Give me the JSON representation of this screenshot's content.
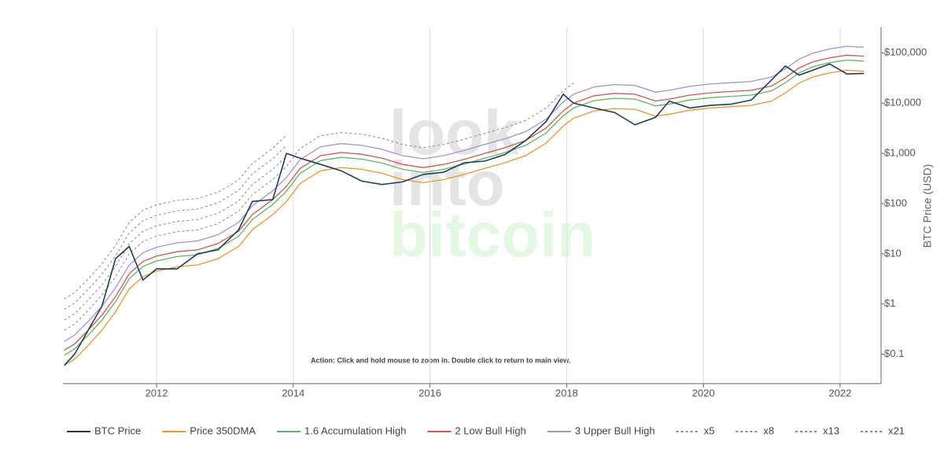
{
  "chart_data": {
    "type": "line",
    "log_y": true,
    "grid_x": true,
    "legend": "bottom",
    "y_axis_side": "right",
    "ylabel": "BTC Price (USD)",
    "annotation": "Action: Click and hold mouse to zoom in.  Double click to return to main view.",
    "watermark": [
      "look",
      "into",
      "bitcoin"
    ],
    "xlim": [
      2010.63,
      2022.6
    ],
    "xticks": [
      2012,
      2014,
      2016,
      2018,
      2020,
      2022
    ],
    "ylim": [
      0.026,
      320000
    ],
    "yticks": [
      {
        "value": 0.1,
        "label": "$0.1"
      },
      {
        "value": 1,
        "label": "$1"
      },
      {
        "value": 10,
        "label": "$10"
      },
      {
        "value": 100,
        "label": "$100"
      },
      {
        "value": 1000,
        "label": "$1,000"
      },
      {
        "value": 10000,
        "label": "$10,000"
      },
      {
        "value": 100000,
        "label": "$100,000"
      }
    ],
    "x": [
      2010.65,
      2010.8,
      2011.0,
      2011.2,
      2011.4,
      2011.6,
      2011.8,
      2012.0,
      2012.3,
      2012.6,
      2012.9,
      2013.2,
      2013.4,
      2013.7,
      2013.9,
      2014.1,
      2014.4,
      2014.7,
      2015.0,
      2015.3,
      2015.6,
      2015.9,
      2016.2,
      2016.5,
      2016.8,
      2017.1,
      2017.4,
      2017.7,
      2017.95,
      2018.1,
      2018.4,
      2018.7,
      2019.0,
      2019.3,
      2019.5,
      2019.8,
      2020.1,
      2020.4,
      2020.7,
      2021.0,
      2021.2,
      2021.4,
      2021.6,
      2021.85,
      2022.1,
      2022.35
    ],
    "series": [
      {
        "name": "BTC Price",
        "color": "#1c3f60",
        "dashed": false,
        "values": [
          0.06,
          0.1,
          0.3,
          0.9,
          8,
          14,
          3,
          5,
          5,
          10,
          12,
          30,
          110,
          120,
          1000,
          800,
          600,
          450,
          280,
          240,
          270,
          380,
          420,
          650,
          700,
          950,
          1800,
          4300,
          15000,
          10000,
          8000,
          6500,
          3700,
          5200,
          11000,
          8000,
          9000,
          9500,
          11500,
          29000,
          55000,
          36000,
          45000,
          60000,
          38000,
          39000
        ]
      },
      {
        "name": "Price 350DMA",
        "color": "#f39422",
        "dashed": false,
        "values": [
          0.06,
          0.08,
          0.15,
          0.3,
          0.7,
          2,
          3.5,
          4.5,
          5.5,
          6,
          8,
          14,
          30,
          60,
          110,
          250,
          450,
          520,
          480,
          400,
          300,
          260,
          300,
          380,
          500,
          650,
          900,
          1600,
          3500,
          5000,
          7000,
          7800,
          7500,
          5500,
          6000,
          7200,
          8000,
          8500,
          9000,
          11000,
          16000,
          25000,
          33000,
          40000,
          45000,
          43000
        ]
      },
      {
        "name": "1.6 Accumulation High",
        "color": "#5cb85c",
        "dashed": false,
        "values": [
          0.096,
          0.128,
          0.24,
          0.48,
          1.12,
          3.2,
          5.6,
          7.2,
          8.8,
          9.6,
          12.8,
          22.4,
          48,
          96,
          176,
          400,
          720,
          832,
          768,
          640,
          480,
          416,
          480,
          608,
          800,
          1040,
          1440,
          2560,
          5600,
          8000,
          11200,
          12480,
          12000,
          8800,
          9600,
          11520,
          12800,
          13600,
          14400,
          17600,
          25600,
          40000,
          52800,
          64000,
          72000,
          68800
        ]
      },
      {
        "name": "2 Low Bull High",
        "color": "#d9534f",
        "dashed": false,
        "values": [
          0.12,
          0.16,
          0.3,
          0.6,
          1.4,
          4,
          7,
          9,
          11,
          12,
          16,
          28,
          60,
          120,
          220,
          500,
          900,
          1040,
          960,
          800,
          600,
          520,
          600,
          760,
          1000,
          1300,
          1800,
          3200,
          7000,
          10000,
          14000,
          15600,
          15000,
          11000,
          12000,
          14400,
          16000,
          17000,
          18000,
          22000,
          32000,
          50000,
          66000,
          80000,
          90000,
          86000
        ]
      },
      {
        "name": "3 Upper Bull High",
        "color": "#a98fd8",
        "dashed": false,
        "values": [
          0.18,
          0.24,
          0.45,
          0.9,
          2.1,
          6,
          10.5,
          13.5,
          16.5,
          18,
          24,
          42,
          90,
          180,
          330,
          750,
          1350,
          1560,
          1440,
          1200,
          900,
          780,
          900,
          1140,
          1500,
          1950,
          2700,
          4800,
          10500,
          15000,
          21000,
          23400,
          22500,
          16500,
          18000,
          21600,
          24000,
          25500,
          27000,
          33000,
          48000,
          75000,
          99000,
          120000,
          135000,
          129000
        ]
      },
      {
        "name": "x5",
        "color": "#888888",
        "dashed": true,
        "values": [
          0.3,
          0.4,
          0.75,
          1.5,
          3.5,
          10,
          17.5,
          22.5,
          27.5,
          30,
          40,
          70,
          150,
          300,
          550,
          1250,
          2250,
          2600,
          2400,
          2000,
          1500,
          1300,
          1500,
          1900,
          2500,
          3250,
          4500,
          8000,
          17500,
          25000,
          null,
          null,
          null,
          null,
          null,
          null,
          null,
          null,
          null,
          null,
          null,
          null,
          null,
          null,
          null,
          null
        ]
      },
      {
        "name": "x8",
        "color": "#888888",
        "dashed": true,
        "values": [
          0.48,
          0.64,
          1.2,
          2.4,
          5.6,
          16,
          28,
          36,
          44,
          48,
          64,
          112,
          240,
          480,
          880,
          null,
          null,
          null,
          null,
          null,
          null,
          null,
          null,
          null,
          null,
          null,
          null,
          null,
          null,
          null,
          null,
          null,
          null,
          null,
          null,
          null,
          null,
          null,
          null,
          null,
          null,
          null,
          null,
          null,
          null,
          null
        ]
      },
      {
        "name": "x13",
        "color": "#888888",
        "dashed": true,
        "values": [
          0.78,
          1.04,
          1.95,
          3.9,
          9.1,
          26,
          45.5,
          58.5,
          71.5,
          78,
          104,
          182,
          390,
          780,
          1430,
          null,
          null,
          null,
          null,
          null,
          null,
          null,
          null,
          null,
          null,
          null,
          null,
          null,
          null,
          null,
          null,
          null,
          null,
          null,
          null,
          null,
          null,
          null,
          null,
          null,
          null,
          null,
          null,
          null,
          null,
          null
        ]
      },
      {
        "name": "x21",
        "color": "#888888",
        "dashed": true,
        "values": [
          1.26,
          1.68,
          3.15,
          6.3,
          14.7,
          42,
          73.5,
          94.5,
          115.5,
          126,
          168,
          294,
          630,
          1260,
          2310,
          null,
          null,
          null,
          null,
          null,
          null,
          null,
          null,
          null,
          null,
          null,
          null,
          null,
          null,
          null,
          null,
          null,
          null,
          null,
          null,
          null,
          null,
          null,
          null,
          null,
          null,
          null,
          null,
          null,
          null,
          null
        ]
      }
    ]
  }
}
